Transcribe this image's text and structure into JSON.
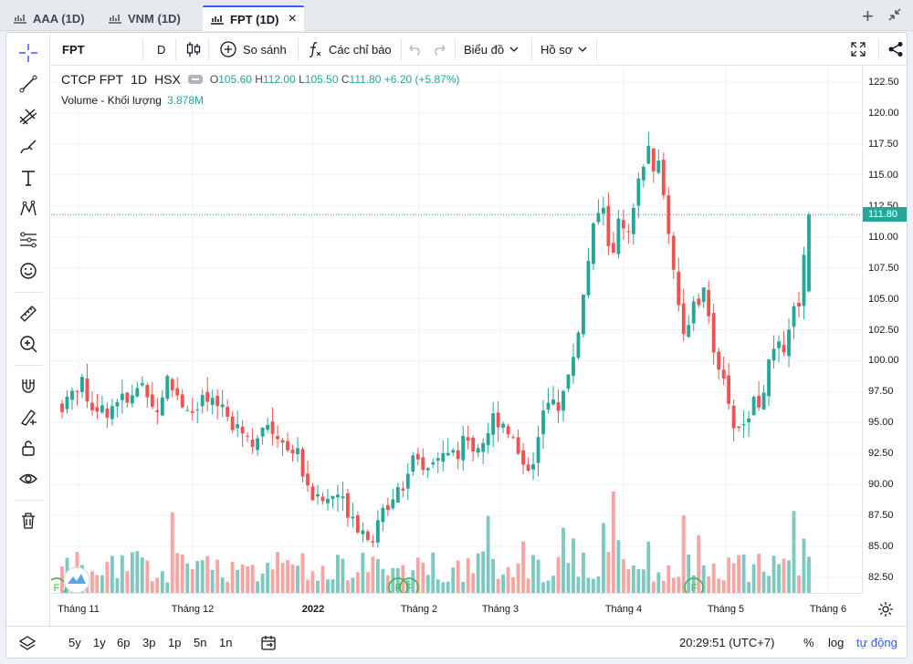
{
  "tabs": [
    {
      "label": "AAA (1D)"
    },
    {
      "label": "VNM (1D)"
    },
    {
      "label": "FPT (1D)",
      "close": "×"
    }
  ],
  "window_controls": {
    "add": "+"
  },
  "toolbar": {
    "symbol": "FPT",
    "interval": "D",
    "compare": "So sánh",
    "indicators": "Các chỉ báo",
    "chart_type": "Biểu đồ",
    "profile": "Hồ sơ"
  },
  "legend": {
    "name": "CTCP FPT",
    "interval": "1D",
    "exchange": "HSX",
    "o_label": "O",
    "o": "105.60",
    "h_label": "H",
    "h": "112.00",
    "l_label": "L",
    "l": "105.50",
    "c_label": "C",
    "c": "111.80",
    "change": "+6.20 (+5.87%)",
    "volume_label": "Volume - Khối lượng",
    "volume_value": "3.878M"
  },
  "price_axis": {
    "labels": [
      "122.50",
      "120.00",
      "117.50",
      "115.00",
      "112.50",
      "110.00",
      "107.50",
      "105.00",
      "102.50",
      "100.00",
      "97.50",
      "95.00",
      "92.50",
      "90.00",
      "87.50",
      "85.00",
      "82.50"
    ],
    "last_price": "111.80"
  },
  "time_axis": {
    "labels": [
      "Tháng 11",
      "Tháng 12",
      "2022",
      "Tháng 2",
      "Tháng 3",
      "Tháng 4",
      "Tháng 5",
      "Tháng 6"
    ]
  },
  "bottom": {
    "ranges": [
      "5y",
      "1y",
      "6p",
      "3p",
      "1p",
      "5n",
      "1n"
    ],
    "clock": "20:29:51 (UTC+7)",
    "percent": "%",
    "log": "log",
    "auto": "tự động"
  },
  "markers": {
    "f": "F"
  },
  "colors": {
    "up": "#26a69a",
    "down": "#ef5350",
    "vol_up": "#7fc8c1",
    "vol_down": "#f7a5a3",
    "accent": "#2962ff"
  },
  "chart_data": {
    "type": "candlestick",
    "ylim": [
      81.25,
      123.75
    ],
    "x_labels": [
      "Tháng 11",
      "Tháng 12",
      "2022",
      "Tháng 2",
      "Tháng 3",
      "Tháng 4",
      "Tháng 5",
      "Tháng 6"
    ],
    "close_path": [
      96.5,
      97.5,
      98.5,
      96.8,
      95.8,
      96.2,
      97.2,
      96.4,
      97.8,
      98.3,
      95.6,
      98.6,
      97.4,
      96.5,
      95.5,
      96.8,
      96.2,
      96.5,
      95.7,
      94.6,
      93.5,
      94.2,
      94.6,
      93.8,
      93.2,
      92.6,
      90.0,
      88.8,
      88.6,
      89.4,
      88.4,
      87.6,
      86.0,
      85.6,
      87.8,
      89.5,
      90.5,
      91.2,
      91.0,
      91.6,
      92.1,
      92.8,
      92.4,
      93.6,
      93.2,
      94.4,
      95.7,
      94.8,
      93.0,
      91.5,
      92.4,
      96.0,
      96.5,
      97.2,
      100.0,
      104.5,
      109.5,
      113.0,
      108.5,
      111.2,
      109.5,
      114.5,
      117.0,
      115.8,
      111.8,
      105.5,
      101.5,
      104.5,
      105.2,
      101.2,
      97.5,
      95.0,
      94.5,
      96.8,
      97.0,
      100.0,
      101.2,
      103.0,
      105.6,
      111.8
    ],
    "last": {
      "open": 105.6,
      "high": 112.0,
      "low": 105.5,
      "close": 111.8
    }
  }
}
